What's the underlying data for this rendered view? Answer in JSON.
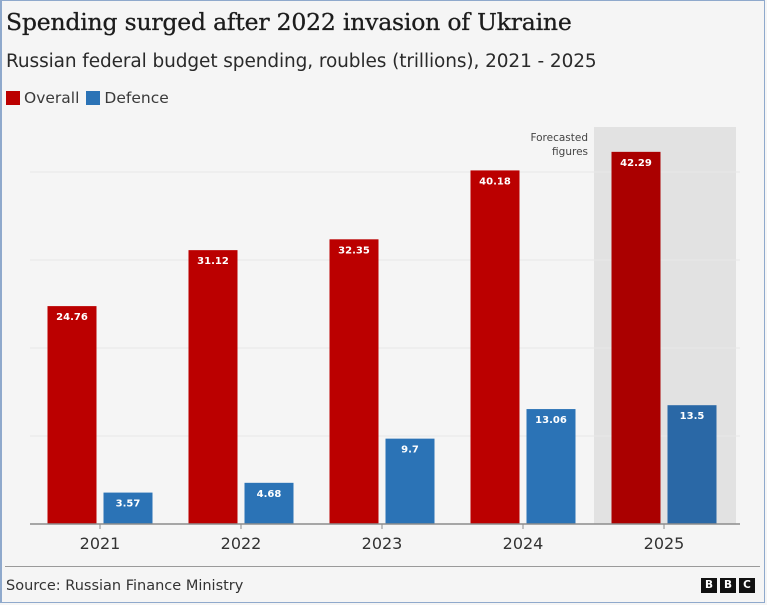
{
  "title": "Spending surged after 2022 invasion of Ukraine",
  "subtitle": "Russian federal budget spending, roubles (trillions), 2021 - 2025",
  "source": "Source: Russian Finance Ministry",
  "logo": [
    "B",
    "B",
    "C"
  ],
  "colors": {
    "overall": "#bb0000",
    "defence": "#2b73b6",
    "overall_forecast": "#aa0000",
    "defence_forecast": "#2a68a6",
    "forecast_band": "#e2e2e2",
    "gridline": "#e8e8e8",
    "axis": "#8c8c8c"
  },
  "chart_data": {
    "type": "bar",
    "title": "Spending surged after 2022 invasion of Ukraine",
    "subtitle": "Russian federal budget spending, roubles (trillions), 2021 - 2025",
    "xlabel": "",
    "ylabel": "",
    "categories": [
      "2021",
      "2022",
      "2023",
      "2024",
      "2025"
    ],
    "series": [
      {
        "name": "Overall",
        "key": "overall",
        "values": [
          24.76,
          31.12,
          32.35,
          40.18,
          42.29
        ],
        "labels": [
          "24.76",
          "31.12",
          "32.35",
          "40.18",
          "42.29"
        ]
      },
      {
        "name": "Defence",
        "key": "defence",
        "values": [
          3.57,
          4.68,
          9.7,
          13.06,
          13.5
        ],
        "labels": [
          "3.57",
          "4.68",
          "9.7",
          "13.06",
          "13.5"
        ]
      }
    ],
    "ylim": [
      0,
      45
    ],
    "gridlines": [
      10,
      20,
      30,
      40
    ],
    "grid": true,
    "legend": "top-left",
    "annotations": [
      {
        "text_lines": [
          "Forecasted",
          "figures"
        ],
        "applies_to": "2025",
        "type": "shaded-band"
      }
    ]
  }
}
